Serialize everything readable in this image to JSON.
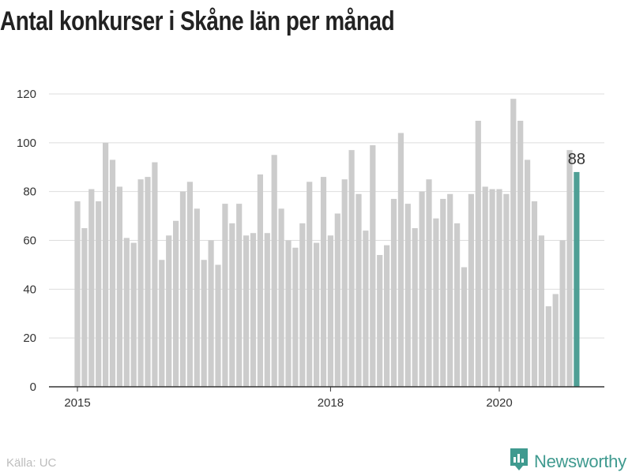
{
  "title": "Antal konkurser i Skåne län per månad",
  "source": "Källa: UC",
  "brand": {
    "name": "Newsworthy",
    "logo_icon": "newsworthy-chat-chart-icon"
  },
  "colors": {
    "bar": "#cccccc",
    "highlight": "#4f9f95",
    "grid": "#dddddd",
    "axis": "#333333",
    "text": "#333333"
  },
  "chart_data": {
    "type": "bar",
    "title": "Antal konkurser i Skåne län per månad",
    "xlabel": "",
    "ylabel": "",
    "ylim": [
      0,
      120
    ],
    "yticks": [
      0,
      20,
      40,
      60,
      80,
      100,
      120
    ],
    "grid": true,
    "start_month": "2015-01",
    "x_tick_labels": [
      {
        "label": "2015",
        "month": "2015-01"
      },
      {
        "label": "2018",
        "month": "2018-01"
      },
      {
        "label": "2020",
        "month": "2020-01"
      }
    ],
    "values": [
      76,
      65,
      81,
      76,
      100,
      93,
      82,
      61,
      59,
      85,
      86,
      92,
      52,
      62,
      68,
      80,
      84,
      73,
      52,
      60,
      50,
      75,
      67,
      75,
      62,
      63,
      87,
      63,
      95,
      73,
      60,
      57,
      67,
      84,
      59,
      86,
      62,
      71,
      85,
      97,
      79,
      64,
      99,
      54,
      58,
      77,
      104,
      75,
      65,
      80,
      85,
      69,
      77,
      79,
      67,
      49,
      79,
      109,
      82,
      81,
      81,
      79,
      118,
      109,
      93,
      76,
      62,
      33,
      38,
      60,
      97,
      88
    ],
    "highlight": {
      "month": "2020-12",
      "value": 88,
      "label": "88"
    }
  }
}
